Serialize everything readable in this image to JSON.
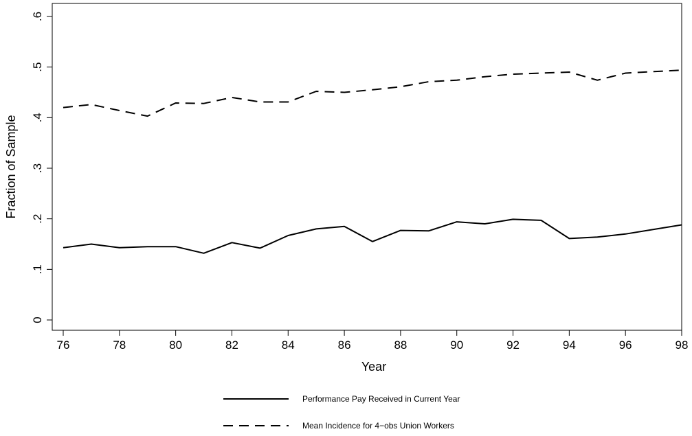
{
  "chart_data": {
    "type": "line",
    "title": "",
    "xlabel": "Year",
    "ylabel": "Fraction of Sample",
    "xlim": [
      76,
      98
    ],
    "ylim": [
      0,
      0.6
    ],
    "x_ticks": [
      76,
      78,
      80,
      82,
      84,
      86,
      88,
      90,
      92,
      94,
      96,
      98
    ],
    "x_tick_labels": [
      "76",
      "78",
      "80",
      "82",
      "84",
      "86",
      "88",
      "90",
      "92",
      "94",
      "96",
      "98"
    ],
    "y_ticks": [
      0,
      0.1,
      0.2,
      0.3,
      0.4,
      0.5,
      0.6
    ],
    "y_tick_labels": [
      "0",
      ".1",
      ".2",
      ".3",
      ".4",
      ".5",
      ".6"
    ],
    "grid": false,
    "legend_position": "bottom",
    "x": [
      76,
      77,
      78,
      79,
      80,
      81,
      82,
      83,
      84,
      85,
      86,
      87,
      88,
      89,
      90,
      91,
      92,
      93,
      94,
      95,
      96,
      97,
      98
    ],
    "series": [
      {
        "name": "Performance Pay Received in Current Year",
        "style": "solid",
        "values": [
          0.143,
          0.15,
          0.143,
          0.145,
          0.145,
          0.132,
          0.153,
          0.142,
          0.167,
          0.18,
          0.185,
          0.155,
          0.177,
          0.176,
          0.194,
          0.19,
          0.199,
          0.197,
          0.161,
          0.164,
          0.17,
          0.179,
          0.188
        ]
      },
      {
        "name": "Mean Incidence for 4−obs Union Workers",
        "style": "dashed",
        "values": [
          0.42,
          0.426,
          0.414,
          0.403,
          0.429,
          0.428,
          0.44,
          0.431,
          0.431,
          0.452,
          0.45,
          0.455,
          0.461,
          0.471,
          0.474,
          0.481,
          0.486,
          0.488,
          0.49,
          0.474,
          0.488,
          0.491,
          0.494
        ]
      }
    ]
  }
}
